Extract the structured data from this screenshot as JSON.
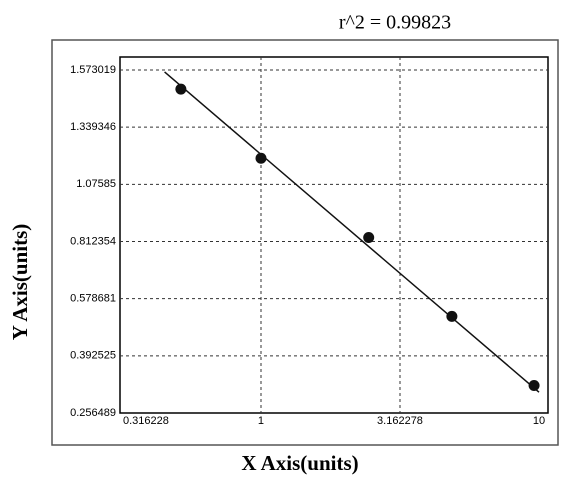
{
  "chart_data": {
    "type": "scatter",
    "title": "r^2 = 0.99823",
    "x_label": "X Axis(units)",
    "y_label": "Y Axis(units)",
    "x": [
      0.515,
      1.0,
      2.44,
      4.86,
      9.6
    ],
    "values": [
      1.495,
      1.196,
      0.831,
      0.521,
      0.322
    ],
    "color": "#111111",
    "fit_line": {
      "x": [
        0.45,
        10
      ],
      "values": [
        1.565,
        0.306
      ],
      "color": "#111111"
    },
    "xscale": "log",
    "xlim": [
      0.316228,
      10
    ],
    "xticks": [
      0.316228,
      1,
      3.162278,
      10
    ],
    "ylim": [
      0.256489,
      1.573019
    ],
    "yticks": [
      0.256489,
      0.392525,
      0.578681,
      0.812354,
      1.07585,
      1.339346,
      1.573019
    ],
    "grid": true
  }
}
